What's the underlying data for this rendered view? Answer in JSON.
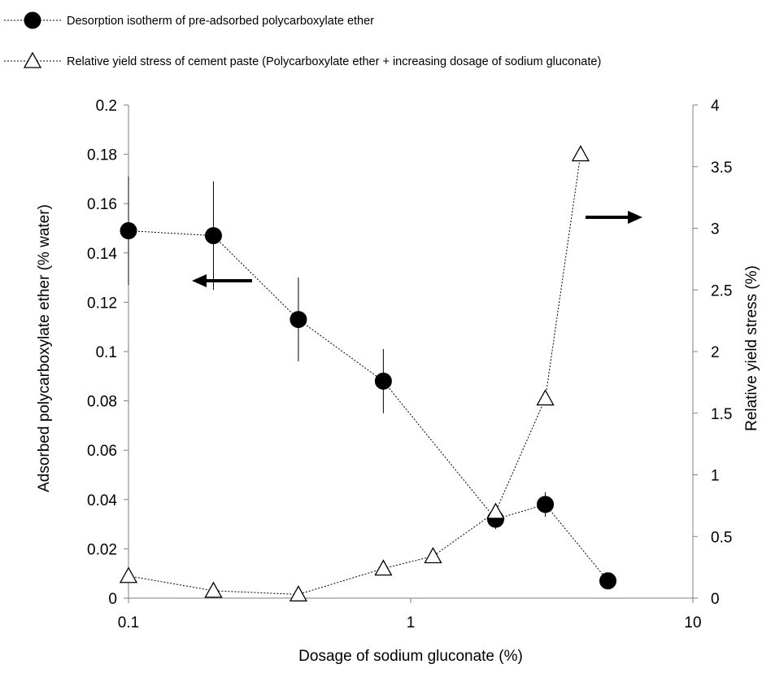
{
  "chart_data": {
    "type": "scatter",
    "xscale": "log",
    "xlim": [
      0.1,
      10
    ],
    "xlabel": "Dosage of sodium gluconate (%)",
    "xticks": [
      "0.1",
      "1",
      "10"
    ],
    "xtick_values": [
      0.1,
      1,
      10
    ],
    "y_left": {
      "label": "Adsorbed polycarboxylate ether  (% water)",
      "lim": [
        0,
        0.2
      ],
      "ticks": [
        "0",
        "0.02",
        "0.04",
        "0.06",
        "0.08",
        "0.1",
        "0.12",
        "0.14",
        "0.16",
        "0.18",
        "0.2"
      ],
      "tick_values": [
        0,
        0.02,
        0.04,
        0.06,
        0.08,
        0.1,
        0.12,
        0.14,
        0.16,
        0.18,
        0.2
      ]
    },
    "y_right": {
      "label": "Relative yield stress  (%)",
      "lim": [
        0,
        4
      ],
      "ticks": [
        "0",
        "0.5",
        "1",
        "1.5",
        "2",
        "2.5",
        "3",
        "3.5",
        "4"
      ],
      "tick_values": [
        0,
        0.5,
        1,
        1.5,
        2,
        2.5,
        3,
        3.5,
        4
      ]
    },
    "series": [
      {
        "name": "Desorption isotherm of pre-adsorbed polycarboxylate ether",
        "axis": "left",
        "marker": "filled-circle",
        "line": "dotted",
        "x": [
          0.1,
          0.2,
          0.4,
          0.8,
          2,
          3,
          5
        ],
        "y": [
          0.149,
          0.147,
          0.113,
          0.088,
          0.032,
          0.038,
          0.007
        ],
        "err": [
          0.022,
          0.022,
          0.017,
          0.013,
          0.004,
          0.005,
          0
        ]
      },
      {
        "name": "Relative yield stress of cement paste (Polycarboxylate ether + increasing dosage of sodium gluconate)",
        "axis": "right",
        "marker": "open-triangle",
        "line": "dotted",
        "x": [
          0.1,
          0.2,
          0.4,
          0.8,
          1.2,
          2,
          3,
          4
        ],
        "y": [
          0.18,
          0.06,
          0.03,
          0.24,
          0.34,
          0.7,
          1.62,
          3.6
        ]
      }
    ],
    "arrows": [
      {
        "direction": "left",
        "points_to": "left axis"
      },
      {
        "direction": "right",
        "points_to": "right axis"
      }
    ],
    "grid": false,
    "legend_position": "top-left"
  }
}
